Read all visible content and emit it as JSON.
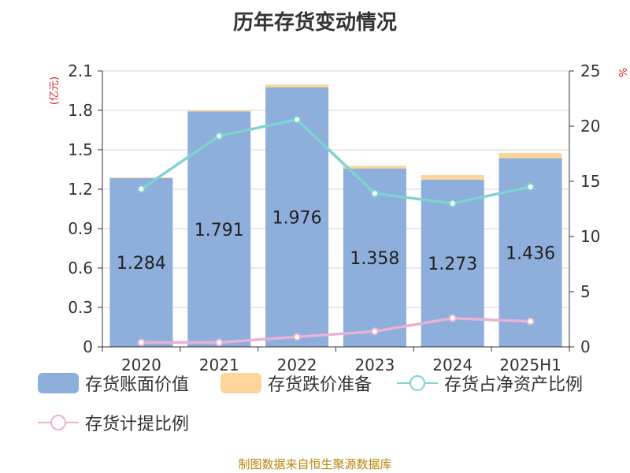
{
  "chart_data": {
    "type": "bar",
    "title": "历年存货变动情况",
    "categories": [
      "2020",
      "2021",
      "2022",
      "2023",
      "2024",
      "2025H1"
    ],
    "left_axis": {
      "label": "(亿元)",
      "ylim": [
        0,
        2.1
      ],
      "ticks": [
        "0",
        "0.3",
        "0.6",
        "0.9",
        "1.2",
        "1.5",
        "1.8",
        "2.1"
      ]
    },
    "right_axis": {
      "label": "%",
      "ylim": [
        0,
        25
      ],
      "ticks": [
        "0",
        "5",
        "10",
        "15",
        "20",
        "25"
      ]
    },
    "series": [
      {
        "name": "存货账面价值",
        "kind": "bar",
        "axis": "left",
        "color": "#8eaedb",
        "values": [
          1.284,
          1.791,
          1.976,
          1.358,
          1.273,
          1.436
        ],
        "labels": [
          "1.284",
          "1.791",
          "1.976",
          "1.358",
          "1.273",
          "1.436"
        ]
      },
      {
        "name": "存货跌价准备",
        "kind": "bar-stacked",
        "axis": "left",
        "color": "#fcd59a",
        "values": [
          0.005,
          0.01,
          0.02,
          0.02,
          0.035,
          0.04
        ]
      },
      {
        "name": "存货占净资产比例",
        "kind": "line",
        "axis": "right",
        "color": "#7fd3d1",
        "values": [
          14.3,
          19.1,
          20.6,
          13.9,
          13.0,
          14.5
        ]
      },
      {
        "name": "存货计提比例",
        "kind": "line",
        "axis": "right",
        "color": "#e7b2d3",
        "values": [
          0.4,
          0.4,
          0.9,
          1.4,
          2.6,
          2.3
        ]
      }
    ],
    "legend_position": "bottom",
    "grid": true
  },
  "source_text": "制图数据来自恒生聚源数据库"
}
